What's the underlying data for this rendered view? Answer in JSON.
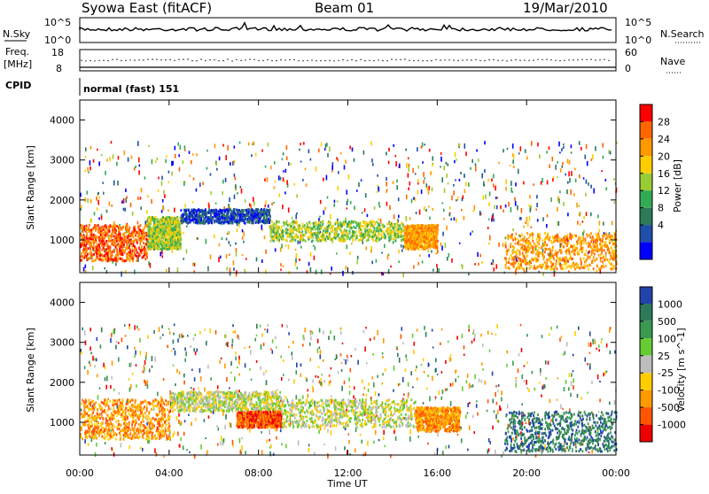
{
  "header": {
    "station": "Syowa East (fitACF)",
    "beam": "Beam 01",
    "date": "19/Mar/2010"
  },
  "strips": {
    "nsky_label": "N.Sky",
    "nsky_ticks": [
      "10^5",
      "10^0"
    ],
    "nsearch_label": "N.Search",
    "nsearch_ticks": [
      "10^5",
      "10^0"
    ],
    "freq_label_1": "Freq.",
    "freq_label_2": "[MHz]",
    "freq_ticks": [
      "18",
      "8"
    ],
    "nave_label": "Nave",
    "nave_ticks": [
      "60",
      "0"
    ],
    "cpid_label": "CPID",
    "cpid_value": "normal (fast) 151"
  },
  "chart_data": [
    {
      "type": "heatmap",
      "name": "power",
      "ylabel": "Slant Range [km]",
      "ylim": [
        180,
        4500
      ],
      "yticks": [
        "4000",
        "3000",
        "2000",
        "1000"
      ],
      "xlim": [
        "00:00",
        "24:00"
      ],
      "colorbar_label": "Power [dB]",
      "colorbar_ticks": [
        "28",
        "24",
        "20",
        "16",
        "12",
        "8",
        "4"
      ],
      "colors": [
        "#ff0000",
        "#ff6600",
        "#ff9900",
        "#ffcc00",
        "#99cc33",
        "#33aa55",
        "#2d7a5a",
        "#1f4fa8",
        "#0000ff"
      ],
      "bands": [
        {
          "t0": 0.0,
          "t1": 3.0,
          "r0": 500,
          "r1": 1400,
          "level": 1
        },
        {
          "t0": 3.0,
          "t1": 4.5,
          "r0": 800,
          "r1": 1600,
          "level": 4
        },
        {
          "t0": 4.5,
          "t1": 8.5,
          "r0": 1450,
          "r1": 1800,
          "level": 7
        },
        {
          "t0": 8.5,
          "t1": 14.5,
          "r0": 1000,
          "r1": 1500,
          "level": 4
        },
        {
          "t0": 14.5,
          "t1": 16.0,
          "r0": 800,
          "r1": 1400,
          "level": 2
        },
        {
          "t0": 19.0,
          "t1": 24.0,
          "r0": 300,
          "r1": 1200,
          "level": 2
        }
      ]
    },
    {
      "type": "heatmap",
      "name": "velocity",
      "ylabel": "Slant Range [km]",
      "ylim": [
        180,
        4500
      ],
      "yticks": [
        "4000",
        "3000",
        "2000",
        "1000"
      ],
      "xlim": [
        "00:00",
        "24:00"
      ],
      "xlabel": "Time UT",
      "xticks": [
        "00:00",
        "04:00",
        "08:00",
        "12:00",
        "16:00",
        "20:00",
        "00:00"
      ],
      "colorbar_label": "Velocity [m s^-1]",
      "colorbar_ticks": [
        "1000",
        "500",
        "100",
        "25",
        "-25",
        "-100",
        "-500",
        "-1000"
      ],
      "colors": [
        "#2244aa",
        "#2d7a5a",
        "#3a9a50",
        "#66cc33",
        "#bdbdbd",
        "#ffcc00",
        "#ff9900",
        "#ff5500",
        "#ee0000"
      ],
      "bands": [
        {
          "t0": 0.0,
          "t1": 4.0,
          "r0": 600,
          "r1": 1600,
          "level": 6
        },
        {
          "t0": 4.0,
          "t1": 9.0,
          "r0": 1300,
          "r1": 1800,
          "level": 4
        },
        {
          "t0": 7.0,
          "t1": 9.0,
          "r0": 900,
          "r1": 1300,
          "level": 7
        },
        {
          "t0": 9.0,
          "t1": 15.0,
          "r0": 900,
          "r1": 1600,
          "level": 4
        },
        {
          "t0": 15.0,
          "t1": 17.0,
          "r0": 800,
          "r1": 1400,
          "level": 6
        },
        {
          "t0": 19.0,
          "t1": 24.0,
          "r0": 300,
          "r1": 1300,
          "level": 1
        }
      ]
    }
  ]
}
